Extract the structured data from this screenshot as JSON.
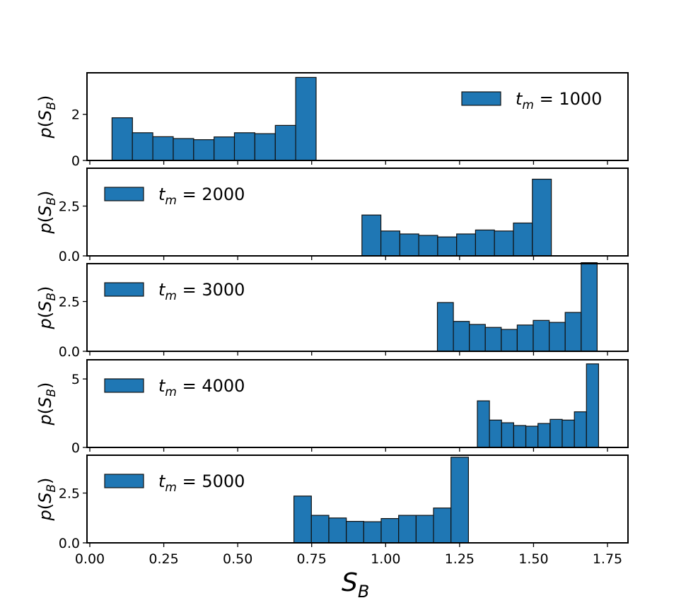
{
  "chart_data": {
    "type": "bar",
    "title": "",
    "xlabel_main": "S",
    "xlabel_sub": "B",
    "ylabel_prefix": "p(S",
    "ylabel_sub": "B",
    "ylabel_suffix": ")",
    "xlim": [
      0,
      1.8
    ],
    "xticks": [
      0.0,
      0.25,
      0.5,
      0.75,
      1.0,
      1.25,
      1.5,
      1.75
    ],
    "xtick_labels": [
      "0.00",
      "0.25",
      "0.50",
      "0.75",
      "1.00",
      "1.25",
      "1.50",
      "1.75"
    ],
    "grid": false,
    "bar_color": "#1f77b4",
    "panels": [
      {
        "legend_var": "t",
        "legend_sub": "m",
        "legend_value": "= 1000",
        "legend_position": "top-right",
        "ylim": [
          0,
          3.8
        ],
        "yticks": [
          0,
          2
        ],
        "ytick_labels": [
          "0",
          "2"
        ],
        "bin_start": 0.075,
        "bin_width": 0.069,
        "values": [
          1.85,
          1.2,
          1.03,
          0.95,
          0.9,
          1.02,
          1.2,
          1.16,
          1.52,
          3.6
        ]
      },
      {
        "legend_var": "t",
        "legend_sub": "m",
        "legend_value": "= 2000",
        "legend_position": "top-left",
        "ylim": [
          0,
          4.4
        ],
        "yticks": [
          0,
          2.5
        ],
        "ytick_labels": [
          "0.0",
          "2.5"
        ],
        "bin_start": 0.92,
        "bin_width": 0.064,
        "values": [
          2.05,
          1.25,
          1.1,
          1.03,
          0.95,
          1.1,
          1.3,
          1.25,
          1.65,
          3.85
        ]
      },
      {
        "legend_var": "t",
        "legend_sub": "m",
        "legend_value": "= 3000",
        "legend_position": "top-left",
        "ylim": [
          0,
          4.4
        ],
        "yticks": [
          0,
          2.5
        ],
        "ytick_labels": [
          "0.0",
          "2.5"
        ],
        "bin_start": 1.175,
        "bin_width": 0.054,
        "values": [
          2.45,
          1.5,
          1.35,
          1.2,
          1.1,
          1.32,
          1.55,
          1.45,
          1.95,
          4.45
        ]
      },
      {
        "legend_var": "t",
        "legend_sub": "m",
        "legend_value": "= 4000",
        "legend_position": "top-left",
        "ylim": [
          0,
          6.4
        ],
        "yticks": [
          0,
          5
        ],
        "ytick_labels": [
          "0",
          "5"
        ],
        "bin_start": 1.31,
        "bin_width": 0.041,
        "values": [
          3.4,
          2.0,
          1.8,
          1.6,
          1.55,
          1.75,
          2.05,
          2.0,
          2.6,
          6.1
        ]
      },
      {
        "legend_var": "t",
        "legend_sub": "m",
        "legend_value": "= 5000",
        "legend_position": "top-left",
        "ylim": [
          0,
          4.4
        ],
        "yticks": [
          0,
          2.5
        ],
        "ytick_labels": [
          "0.0",
          "2.5"
        ],
        "bin_start": 0.69,
        "bin_width": 0.059,
        "values": [
          2.35,
          1.38,
          1.25,
          1.08,
          1.06,
          1.22,
          1.38,
          1.38,
          1.75,
          4.3
        ]
      }
    ]
  }
}
